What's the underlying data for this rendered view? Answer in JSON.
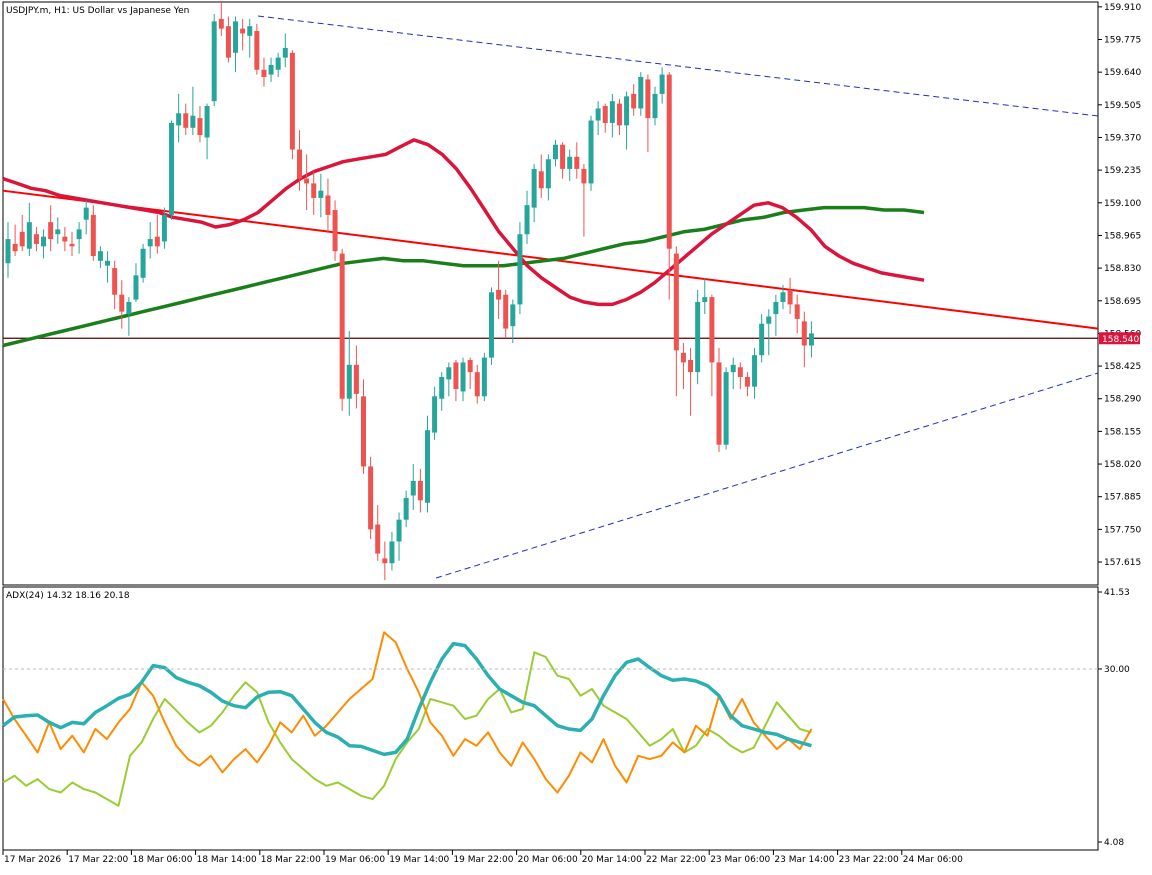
{
  "main_title": "USDJPY.m, H1:  US Dollar vs Japanese Yen",
  "indicator_title": "ADX(24) 14.32 18.16 20.18",
  "price_axis": [
    "159.910",
    "159.775",
    "159.640",
    "159.505",
    "159.370",
    "159.235",
    "159.100",
    "158.965",
    "158.830",
    "158.695",
    "158.560",
    "158.425",
    "158.290",
    "158.155",
    "158.020",
    "157.885",
    "157.750",
    "157.615"
  ],
  "adx_axis": [
    "41.53",
    "30.00",
    "4.08"
  ],
  "current_price": "158.540",
  "time_axis": [
    "17 Mar 2026",
    "17 Mar 22:00",
    "18 Mar 06:00",
    "18 Mar 14:00",
    "18 Mar 22:00",
    "19 Mar 06:00",
    "19 Mar 14:00",
    "19 Mar 22:00",
    "20 Mar 06:00",
    "20 Mar 14:00",
    "22 Mar 22:00",
    "23 Mar 06:00",
    "23 Mar 14:00",
    "23 Mar 22:00",
    "24 Mar 06:00"
  ],
  "colors": {
    "bull": "#26a69a",
    "bear": "#ef5350",
    "ma_fast": "#dc143c",
    "ma_slow": "#1a7f1a",
    "regression": "#ff0000",
    "channel": "#1f2fbf",
    "adx_main": "#2ab0b0",
    "adx_plus": "#9acd32",
    "adx_minus": "#ff8c00",
    "price_label_bg": "#dc143c"
  },
  "chart_data": [
    {
      "type": "candlestick",
      "symbol": "USDJPY.m",
      "timeframe": "H1",
      "ylim": [
        157.52,
        159.93
      ],
      "current_price": 158.54,
      "candles_ohlc": [
        [
          158.85,
          159.02,
          158.79,
          158.95
        ],
        [
          158.93,
          159.01,
          158.88,
          158.9
        ],
        [
          158.98,
          159.05,
          158.9,
          158.92
        ],
        [
          158.91,
          159.1,
          158.88,
          159.02
        ],
        [
          158.97,
          159.0,
          158.9,
          158.93
        ],
        [
          158.92,
          158.99,
          158.87,
          158.96
        ],
        [
          159.02,
          159.09,
          158.9,
          158.95
        ],
        [
          158.97,
          159.04,
          158.93,
          158.99
        ],
        [
          158.96,
          159.0,
          158.9,
          158.94
        ],
        [
          158.93,
          158.98,
          158.88,
          158.92
        ],
        [
          158.95,
          159.02,
          158.89,
          158.99
        ],
        [
          159.03,
          159.11,
          158.97,
          159.08
        ],
        [
          159.05,
          159.09,
          158.86,
          158.88
        ],
        [
          158.86,
          158.92,
          158.83,
          158.9
        ],
        [
          158.84,
          158.9,
          158.77,
          158.86
        ],
        [
          158.83,
          158.86,
          158.66,
          158.72
        ],
        [
          158.72,
          158.78,
          158.58,
          158.65
        ],
        [
          158.64,
          158.71,
          158.55,
          158.69
        ],
        [
          158.7,
          158.85,
          158.69,
          158.8
        ],
        [
          158.79,
          158.93,
          158.77,
          158.91
        ],
        [
          158.92,
          159.02,
          158.87,
          158.95
        ],
        [
          158.96,
          159.05,
          158.89,
          158.92
        ],
        [
          158.94,
          159.08,
          158.91,
          159.05
        ],
        [
          159.05,
          159.44,
          159.03,
          159.43
        ],
        [
          159.42,
          159.55,
          159.35,
          159.47
        ],
        [
          159.47,
          159.51,
          159.38,
          159.41
        ],
        [
          159.41,
          159.58,
          159.38,
          159.46
        ],
        [
          159.45,
          159.5,
          159.35,
          159.38
        ],
        [
          159.37,
          159.51,
          159.28,
          159.5
        ],
        [
          159.52,
          159.88,
          159.5,
          159.85
        ],
        [
          159.86,
          159.93,
          159.79,
          159.82
        ],
        [
          159.83,
          159.87,
          159.68,
          159.7
        ],
        [
          159.72,
          159.87,
          159.64,
          159.85
        ],
        [
          159.82,
          159.86,
          159.73,
          159.8
        ],
        [
          159.79,
          159.86,
          159.7,
          159.83
        ],
        [
          159.81,
          159.84,
          159.63,
          159.65
        ],
        [
          159.65,
          159.7,
          159.58,
          159.62
        ],
        [
          159.63,
          159.7,
          159.6,
          159.67
        ],
        [
          159.65,
          159.72,
          159.62,
          159.7
        ],
        [
          159.7,
          159.8,
          159.66,
          159.74
        ],
        [
          159.72,
          159.73,
          159.28,
          159.32
        ],
        [
          159.32,
          159.4,
          159.15,
          159.2
        ],
        [
          159.2,
          159.3,
          159.07,
          159.18
        ],
        [
          159.18,
          159.23,
          159.05,
          159.12
        ],
        [
          159.12,
          159.22,
          159.04,
          159.15
        ],
        [
          159.13,
          159.2,
          158.98,
          159.05
        ],
        [
          159.07,
          159.11,
          158.86,
          158.9
        ],
        [
          158.89,
          158.91,
          158.24,
          158.29
        ],
        [
          158.29,
          158.57,
          158.22,
          158.43
        ],
        [
          158.43,
          158.51,
          158.25,
          158.31
        ],
        [
          158.3,
          158.37,
          157.98,
          158.01
        ],
        [
          158.01,
          158.05,
          157.71,
          157.75
        ],
        [
          157.77,
          157.85,
          157.62,
          157.65
        ],
        [
          157.63,
          157.7,
          157.54,
          157.61
        ],
        [
          157.61,
          157.74,
          157.58,
          157.7
        ],
        [
          157.7,
          157.82,
          157.62,
          157.79
        ],
        [
          157.79,
          157.91,
          157.76,
          157.88
        ],
        [
          157.89,
          158.02,
          157.83,
          157.95
        ],
        [
          157.95,
          158.0,
          157.82,
          157.87
        ],
        [
          157.86,
          158.22,
          157.82,
          158.16
        ],
        [
          158.15,
          158.34,
          158.12,
          158.3
        ],
        [
          158.29,
          158.4,
          158.24,
          158.38
        ],
        [
          158.37,
          158.44,
          158.3,
          158.42
        ],
        [
          158.44,
          158.45,
          158.28,
          158.33
        ],
        [
          158.32,
          158.46,
          158.28,
          158.44
        ],
        [
          158.45,
          158.46,
          158.33,
          158.4
        ],
        [
          158.4,
          158.43,
          158.27,
          158.3
        ],
        [
          158.3,
          158.48,
          158.28,
          158.46
        ],
        [
          158.46,
          158.75,
          158.43,
          158.73
        ],
        [
          158.74,
          158.86,
          158.62,
          158.7
        ],
        [
          158.72,
          158.74,
          158.54,
          158.58
        ],
        [
          158.59,
          158.7,
          158.52,
          158.68
        ],
        [
          158.68,
          159.02,
          158.64,
          158.97
        ],
        [
          158.97,
          159.15,
          158.93,
          159.09
        ],
        [
          159.08,
          159.26,
          159.02,
          159.24
        ],
        [
          159.23,
          159.3,
          159.12,
          159.16
        ],
        [
          159.16,
          159.3,
          159.11,
          159.28
        ],
        [
          159.28,
          159.36,
          159.25,
          159.34
        ],
        [
          159.34,
          159.35,
          159.2,
          159.24
        ],
        [
          159.24,
          159.32,
          159.19,
          159.29
        ],
        [
          159.29,
          159.35,
          159.2,
          159.24
        ],
        [
          159.24,
          159.26,
          158.96,
          159.18
        ],
        [
          159.18,
          159.46,
          159.15,
          159.44
        ],
        [
          159.44,
          159.52,
          159.38,
          159.49
        ],
        [
          159.5,
          159.51,
          159.39,
          159.43
        ],
        [
          159.43,
          159.55,
          159.37,
          159.52
        ],
        [
          159.51,
          159.53,
          159.38,
          159.42
        ],
        [
          159.42,
          159.56,
          159.32,
          159.54
        ],
        [
          159.55,
          159.59,
          159.46,
          159.49
        ],
        [
          159.49,
          159.64,
          159.46,
          159.62
        ],
        [
          159.61,
          159.63,
          159.31,
          159.45
        ],
        [
          159.45,
          159.58,
          159.42,
          159.55
        ],
        [
          159.55,
          159.66,
          159.51,
          159.63
        ],
        [
          159.63,
          159.64,
          158.7,
          158.91
        ],
        [
          158.89,
          158.92,
          158.3,
          158.49
        ],
        [
          158.48,
          158.52,
          158.33,
          158.44
        ],
        [
          158.45,
          158.5,
          158.22,
          158.4
        ],
        [
          158.4,
          158.74,
          158.35,
          158.69
        ],
        [
          158.69,
          158.79,
          158.64,
          158.71
        ],
        [
          158.71,
          158.72,
          158.3,
          158.44
        ],
        [
          158.44,
          158.5,
          158.07,
          158.1
        ],
        [
          158.1,
          158.42,
          158.08,
          158.4
        ],
        [
          158.4,
          158.46,
          158.33,
          158.43
        ],
        [
          158.42,
          158.44,
          158.33,
          158.38
        ],
        [
          158.38,
          158.4,
          158.3,
          158.34
        ],
        [
          158.34,
          158.5,
          158.29,
          158.47
        ],
        [
          158.47,
          158.64,
          158.44,
          158.6
        ],
        [
          158.6,
          158.66,
          158.47,
          158.63
        ],
        [
          158.64,
          158.72,
          158.55,
          158.69
        ],
        [
          158.69,
          158.76,
          158.66,
          158.73
        ],
        [
          158.74,
          158.79,
          158.64,
          158.68
        ],
        [
          158.68,
          158.72,
          158.56,
          158.62
        ],
        [
          158.61,
          158.65,
          158.42,
          158.51
        ],
        [
          158.51,
          158.61,
          158.46,
          158.56
        ]
      ],
      "ma_fast_values": [
        159.2,
        159.18,
        159.16,
        159.15,
        159.13,
        159.12,
        159.11,
        159.1,
        159.09,
        159.08,
        159.07,
        159.06,
        159.04,
        159.03,
        159.02,
        159.0,
        159.01,
        159.03,
        159.06,
        159.11,
        159.16,
        159.2,
        159.23,
        159.25,
        159.27,
        159.28,
        159.29,
        159.3,
        159.33,
        159.36,
        159.34,
        159.3,
        159.24,
        159.16,
        159.07,
        158.98,
        158.91,
        158.84,
        158.79,
        158.75,
        158.71,
        158.69,
        158.68,
        158.68,
        158.7,
        158.73,
        158.77,
        158.82,
        158.87,
        158.92,
        158.97,
        159.01,
        159.05,
        159.09,
        159.1,
        159.08,
        159.04,
        158.99,
        158.92,
        158.88,
        158.85,
        158.83,
        158.81,
        158.8,
        158.79,
        158.78
      ],
      "ma_slow_values": [
        158.51,
        158.53,
        158.55,
        158.57,
        158.59,
        158.61,
        158.63,
        158.65,
        158.67,
        158.69,
        158.71,
        158.73,
        158.75,
        158.77,
        158.79,
        158.81,
        158.83,
        158.85,
        158.86,
        158.87,
        158.86,
        158.86,
        158.85,
        158.84,
        158.84,
        158.84,
        158.85,
        158.86,
        158.87,
        158.89,
        158.91,
        158.93,
        158.94,
        158.96,
        158.98,
        158.99,
        159.01,
        159.03,
        159.04,
        159.06,
        159.07,
        159.08,
        159.08,
        159.08,
        159.07,
        159.07,
        159.06
      ],
      "regression_line": [
        159.15,
        158.58
      ],
      "adx": {
        "ylim": [
          4.08,
          41.53
        ],
        "level": 30.0,
        "adx_values": [
          21.5,
          22.8,
          23.0,
          23.1,
          22.0,
          21.2,
          22.0,
          21.8,
          23.5,
          24.5,
          25.6,
          26.2,
          28.0,
          30.5,
          30.2,
          28.7,
          28.0,
          27.5,
          26.5,
          25.2,
          24.5,
          24.2,
          25.8,
          26.5,
          26.6,
          26.0,
          24.0,
          22.0,
          20.5,
          19.8,
          18.5,
          18.4,
          17.8,
          17.2,
          17.5,
          19.5,
          24.0,
          28.0,
          31.5,
          33.8,
          33.5,
          31.5,
          29.0,
          27.0,
          26.0,
          25.0,
          24.5,
          23.0,
          21.5,
          21.0,
          20.8,
          22.5,
          26.0,
          29.0,
          31.0,
          31.5,
          30.2,
          29.0,
          28.3,
          28.5,
          28.2,
          27.5,
          26.0,
          23.0,
          21.5,
          21.0,
          20.5,
          20.2,
          19.5,
          19.0,
          18.5
        ],
        "plus_di_values": [
          13.0,
          14.0,
          12.5,
          13.5,
          12.0,
          11.5,
          13.0,
          12.0,
          11.5,
          10.5,
          9.5,
          17.0,
          19.0,
          22.5,
          25.5,
          23.8,
          22.0,
          20.5,
          21.5,
          23.5,
          26.0,
          28.0,
          26.5,
          22.0,
          19.0,
          16.5,
          15.0,
          13.5,
          12.5,
          13.0,
          12.0,
          11.0,
          10.5,
          12.5,
          16.5,
          19.0,
          21.0,
          25.5,
          25.0,
          24.5,
          22.5,
          23.0,
          25.5,
          27.0,
          23.5,
          24.0,
          32.5,
          31.8,
          29.0,
          28.5,
          26.0,
          27.0,
          24.5,
          23.5,
          22.5,
          20.5,
          18.5,
          19.5,
          21.0,
          17.5,
          18.5,
          21.0,
          20.0,
          18.5,
          17.5,
          18.2,
          21.5,
          25.0,
          23.0,
          21.0,
          20.5
        ],
        "minus_di_values": [
          25.5,
          22.5,
          20.0,
          17.5,
          22.0,
          18.0,
          20.0,
          17.5,
          21.0,
          19.5,
          22.0,
          24.0,
          28.0,
          26.0,
          22.0,
          18.5,
          16.5,
          15.5,
          17.0,
          14.5,
          16.5,
          18.0,
          16.0,
          18.5,
          22.0,
          20.5,
          23.0,
          20.0,
          21.5,
          23.5,
          25.5,
          27.0,
          28.5,
          35.5,
          34.0,
          30.0,
          26.5,
          22.0,
          20.0,
          17.0,
          19.5,
          18.5,
          20.5,
          17.5,
          15.5,
          19.0,
          16.5,
          13.5,
          11.5,
          14.0,
          17.5,
          16.0,
          19.5,
          15.5,
          13.0,
          17.0,
          16.5,
          17.0,
          19.0,
          17.5,
          21.5,
          20.0,
          26.0,
          22.5,
          25.5,
          22.0,
          20.0,
          18.0,
          19.5,
          18.0,
          21.0
        ]
      }
    }
  ]
}
